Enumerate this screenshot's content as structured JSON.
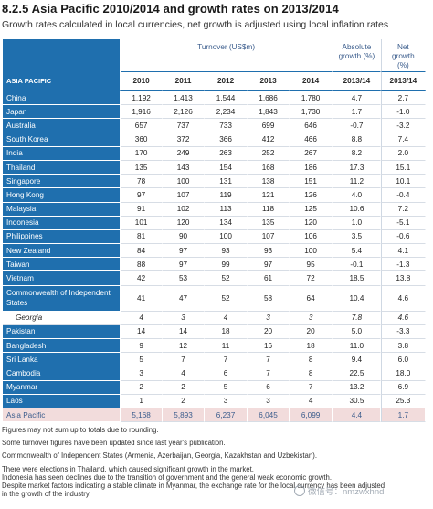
{
  "title": "8.2.5 Asia Pacific 2010/2014 and growth rates on 2013/2014",
  "subtitle": "Growth rates calculated in local currencies, net growth is adjusted using local inflation rates",
  "table": {
    "group_header": "Turnover (US$m)",
    "absolute_header": "Absolute growth (%)",
    "net_header": "Net growth (%)",
    "region_header": "ASIA PACIFIC",
    "years": [
      "2010",
      "2011",
      "2012",
      "2013",
      "2014",
      "2013/14",
      "2013/14"
    ],
    "rows": [
      {
        "country": "China",
        "v": [
          "1,192",
          "1,413",
          "1,544",
          "1,686",
          "1,780",
          "4.7",
          "2.7"
        ]
      },
      {
        "country": "Japan",
        "v": [
          "1,916",
          "2,126",
          "2,234",
          "1,843",
          "1,730",
          "1.7",
          "-1.0"
        ]
      },
      {
        "country": "Australia",
        "v": [
          "657",
          "737",
          "733",
          "699",
          "646",
          "-0.7",
          "-3.2"
        ]
      },
      {
        "country": "South Korea",
        "v": [
          "360",
          "372",
          "366",
          "412",
          "466",
          "8.8",
          "7.4"
        ]
      },
      {
        "country": "India",
        "v": [
          "170",
          "249",
          "263",
          "252",
          "267",
          "8.2",
          "2.0"
        ]
      },
      {
        "country": "Thailand",
        "v": [
          "135",
          "143",
          "154",
          "168",
          "186",
          "17.3",
          "15.1"
        ]
      },
      {
        "country": "Singapore",
        "v": [
          "78",
          "100",
          "131",
          "138",
          "151",
          "11.2",
          "10.1"
        ]
      },
      {
        "country": "Hong Kong",
        "v": [
          "97",
          "107",
          "119",
          "121",
          "126",
          "4.0",
          "-0.4"
        ]
      },
      {
        "country": "Malaysia",
        "v": [
          "91",
          "102",
          "113",
          "118",
          "125",
          "10.6",
          "7.2"
        ]
      },
      {
        "country": "Indonesia",
        "v": [
          "101",
          "120",
          "134",
          "135",
          "120",
          "1.0",
          "-5.1"
        ]
      },
      {
        "country": "Philippines",
        "v": [
          "81",
          "90",
          "100",
          "107",
          "106",
          "3.5",
          "-0.6"
        ]
      },
      {
        "country": "New Zealand",
        "v": [
          "84",
          "97",
          "93",
          "93",
          "100",
          "5.4",
          "4.1"
        ]
      },
      {
        "country": "Taiwan",
        "v": [
          "88",
          "97",
          "99",
          "97",
          "95",
          "-0.1",
          "-1.3"
        ]
      },
      {
        "country": "Vietnam",
        "v": [
          "42",
          "53",
          "52",
          "61",
          "72",
          "18.5",
          "13.8"
        ]
      },
      {
        "country": "Commonwealth of Independent States",
        "v": [
          "41",
          "47",
          "52",
          "58",
          "64",
          "10.4",
          "4.6"
        ],
        "tall": true
      },
      {
        "country": "Georgia",
        "v": [
          "4",
          "3",
          "4",
          "3",
          "3",
          "7.8",
          "4.6"
        ],
        "sub": true
      },
      {
        "country": "Pakistan",
        "v": [
          "14",
          "14",
          "18",
          "20",
          "20",
          "5.0",
          "-3.3"
        ]
      },
      {
        "country": "Bangladesh",
        "v": [
          "9",
          "12",
          "11",
          "16",
          "18",
          "11.0",
          "3.8"
        ]
      },
      {
        "country": "Sri Lanka",
        "v": [
          "5",
          "7",
          "7",
          "7",
          "8",
          "9.4",
          "6.0"
        ]
      },
      {
        "country": "Cambodia",
        "v": [
          "3",
          "4",
          "6",
          "7",
          "8",
          "22.5",
          "18.0"
        ]
      },
      {
        "country": "Myanmar",
        "v": [
          "2",
          "2",
          "5",
          "6",
          "7",
          "13.2",
          "6.9"
        ]
      },
      {
        "country": "Laos",
        "v": [
          "1",
          "2",
          "3",
          "3",
          "4",
          "30.5",
          "25.3"
        ]
      },
      {
        "country": "Asia Pacific",
        "v": [
          "5,168",
          "5,893",
          "6,237",
          "6,045",
          "6,099",
          "4.4",
          "1.7"
        ],
        "total": true
      }
    ]
  },
  "notes": [
    "Figures may not sum up to totals due to rounding.",
    "Some turnover figures have been updated since last year's publication.",
    "Commonwealth of Independent States (Armenia, Azerbaijan, Georgia, Kazakhstan and Uzbekistan).",
    "There were elections in Thailand, which caused significant growth in the market.",
    "Indonesia has seen declines due to the transition of government and the general weak economic growth.",
    "Despite market factors indicating a stable climate in Myanmar, the exchange rate for the local currency has been adjusted",
    "in the growth of the industry."
  ],
  "watermark": "微信号：nmzwxhnd"
}
